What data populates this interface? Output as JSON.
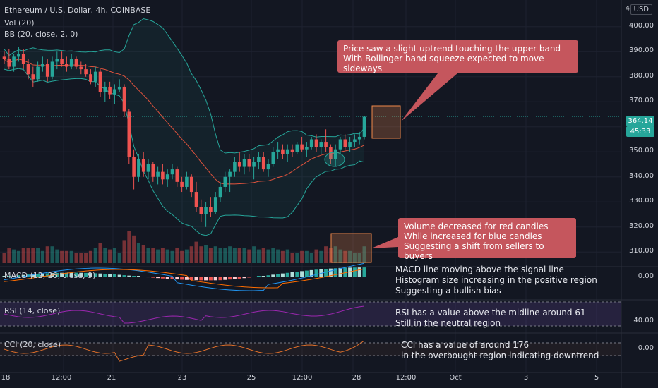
{
  "header": {
    "title": "Ethereum / U.S. Dollar, 4h, COINBASE",
    "indicator_vol": "Vol (20)",
    "indicator_bb": "BB (20, close, 2, 0)",
    "currency": "USD",
    "currency_icon": "4"
  },
  "price_scale": {
    "ticks": [
      400,
      390,
      380,
      370,
      360,
      350,
      340,
      330,
      320,
      310
    ],
    "tick_labels": [
      "400.00",
      "390.00",
      "380.00",
      "370.00",
      "360.00",
      "350.00",
      "340.00",
      "330.00",
      "320.00",
      "310.00"
    ],
    "last_price": "364.14",
    "countdown": "45:33"
  },
  "macd_panel": {
    "label": "MACD (12, 26, close, 9)",
    "scale_label": "0.00"
  },
  "rsi_panel": {
    "label": "RSI (14, close)",
    "scale_label": "40.00"
  },
  "cci_panel": {
    "label": "CCI (20, close)",
    "scale_label": "0.00"
  },
  "time_axis": {
    "labels": [
      "18",
      "12:00",
      "21",
      "23",
      "25",
      "12:00",
      "28",
      "12:00",
      "Oct",
      "3",
      "5"
    ]
  },
  "annotations": {
    "bb_callout": "Price saw a slight uptrend touching the upper band\nWith Bollinger band squeeze expected to move sideways",
    "volume_callout": "Volume decreased for red candles\nWhile increased for blue candles\nSuggesting a shift from sellers to buyers",
    "macd_note": "MACD line moving above the signal line\nHistogram size increasing in the positive region\nSuggesting a bullish bias",
    "rsi_note": "RSI has a value above the midline around 61\nStill in the neutral region",
    "cci_note": "CCI has a value of around 176\nin the overbought region indicating downtrend"
  },
  "colors": {
    "background": "#131722",
    "up": "#26a69a",
    "down": "#ef5350",
    "bb_band": "#26a69a",
    "bb_basis": "#e0533d",
    "macd_line": "#2196f3",
    "signal_line": "#ff6d00",
    "rsi_line": "#9c27b0",
    "cci_line": "#e0702a",
    "callout": "#c5565d",
    "highlight": "#f0884a"
  },
  "chart_data": {
    "type": "candlestick",
    "title": "Ethereum / U.S. Dollar, 4h, COINBASE",
    "ylim": [
      305,
      405
    ],
    "candles": [
      [
        388,
        390,
        385,
        387
      ],
      [
        387,
        391,
        383,
        384
      ],
      [
        384,
        389,
        382,
        388
      ],
      [
        388,
        392,
        386,
        389
      ],
      [
        389,
        391,
        383,
        385
      ],
      [
        385,
        387,
        379,
        381
      ],
      [
        381,
        384,
        376,
        379
      ],
      [
        379,
        386,
        378,
        384
      ],
      [
        384,
        388,
        382,
        385
      ],
      [
        385,
        387,
        378,
        380
      ],
      [
        380,
        388,
        379,
        386
      ],
      [
        386,
        390,
        383,
        387
      ],
      [
        387,
        390,
        384,
        385
      ],
      [
        385,
        388,
        382,
        384
      ],
      [
        384,
        389,
        383,
        387
      ],
      [
        387,
        388,
        383,
        384
      ],
      [
        384,
        386,
        381,
        383
      ],
      [
        383,
        385,
        380,
        381
      ],
      [
        381,
        383,
        377,
        378
      ],
      [
        378,
        384,
        376,
        382
      ],
      [
        382,
        383,
        372,
        374
      ],
      [
        374,
        378,
        370,
        376
      ],
      [
        376,
        378,
        371,
        373
      ],
      [
        373,
        377,
        369,
        375
      ],
      [
        375,
        379,
        374,
        376
      ],
      [
        376,
        377,
        364,
        366
      ],
      [
        366,
        367,
        345,
        348
      ],
      [
        348,
        351,
        335,
        340
      ],
      [
        340,
        349,
        338,
        347
      ],
      [
        347,
        350,
        340,
        342
      ],
      [
        342,
        347,
        339,
        345
      ],
      [
        345,
        346,
        338,
        340
      ],
      [
        340,
        344,
        337,
        342
      ],
      [
        342,
        345,
        337,
        339
      ],
      [
        339,
        343,
        336,
        341
      ],
      [
        341,
        345,
        339,
        343
      ],
      [
        343,
        344,
        336,
        338
      ],
      [
        338,
        340,
        334,
        336
      ],
      [
        336,
        342,
        335,
        340
      ],
      [
        340,
        341,
        332,
        334
      ],
      [
        334,
        338,
        326,
        328
      ],
      [
        328,
        331,
        322,
        325
      ],
      [
        325,
        330,
        320,
        328
      ],
      [
        328,
        332,
        324,
        326
      ],
      [
        326,
        334,
        325,
        332
      ],
      [
        332,
        338,
        330,
        336
      ],
      [
        336,
        342,
        334,
        340
      ],
      [
        340,
        343,
        334,
        342
      ],
      [
        342,
        348,
        340,
        346
      ],
      [
        346,
        350,
        342,
        344
      ],
      [
        344,
        349,
        341,
        347
      ],
      [
        347,
        349,
        342,
        344
      ],
      [
        344,
        348,
        339,
        346
      ],
      [
        346,
        350,
        343,
        348
      ],
      [
        348,
        350,
        342,
        343
      ],
      [
        343,
        347,
        340,
        345
      ],
      [
        345,
        352,
        344,
        350
      ],
      [
        350,
        354,
        347,
        351
      ],
      [
        351,
        353,
        347,
        349
      ],
      [
        349,
        353,
        346,
        351
      ],
      [
        351,
        353,
        348,
        350
      ],
      [
        350,
        354,
        349,
        353
      ],
      [
        353,
        356,
        350,
        351
      ],
      [
        351,
        354,
        348,
        352
      ],
      [
        352,
        356,
        351,
        355
      ],
      [
        355,
        357,
        350,
        352
      ],
      [
        352,
        355,
        349,
        354
      ],
      [
        354,
        359,
        350,
        352
      ],
      [
        352,
        353,
        345,
        347
      ],
      [
        347,
        353,
        344,
        351
      ],
      [
        351,
        356,
        349,
        355
      ],
      [
        355,
        357,
        351,
        352
      ],
      [
        352,
        356,
        350,
        354
      ],
      [
        354,
        357,
        352,
        355
      ],
      [
        355,
        358,
        353,
        356
      ],
      [
        356,
        364,
        355,
        364
      ]
    ],
    "volume_note": "higher on early red candles, decreasing later; blue increasing at end",
    "bollinger": {
      "period": 20,
      "stddev": 2
    },
    "rsi_value": 61,
    "cci_value": 176
  }
}
